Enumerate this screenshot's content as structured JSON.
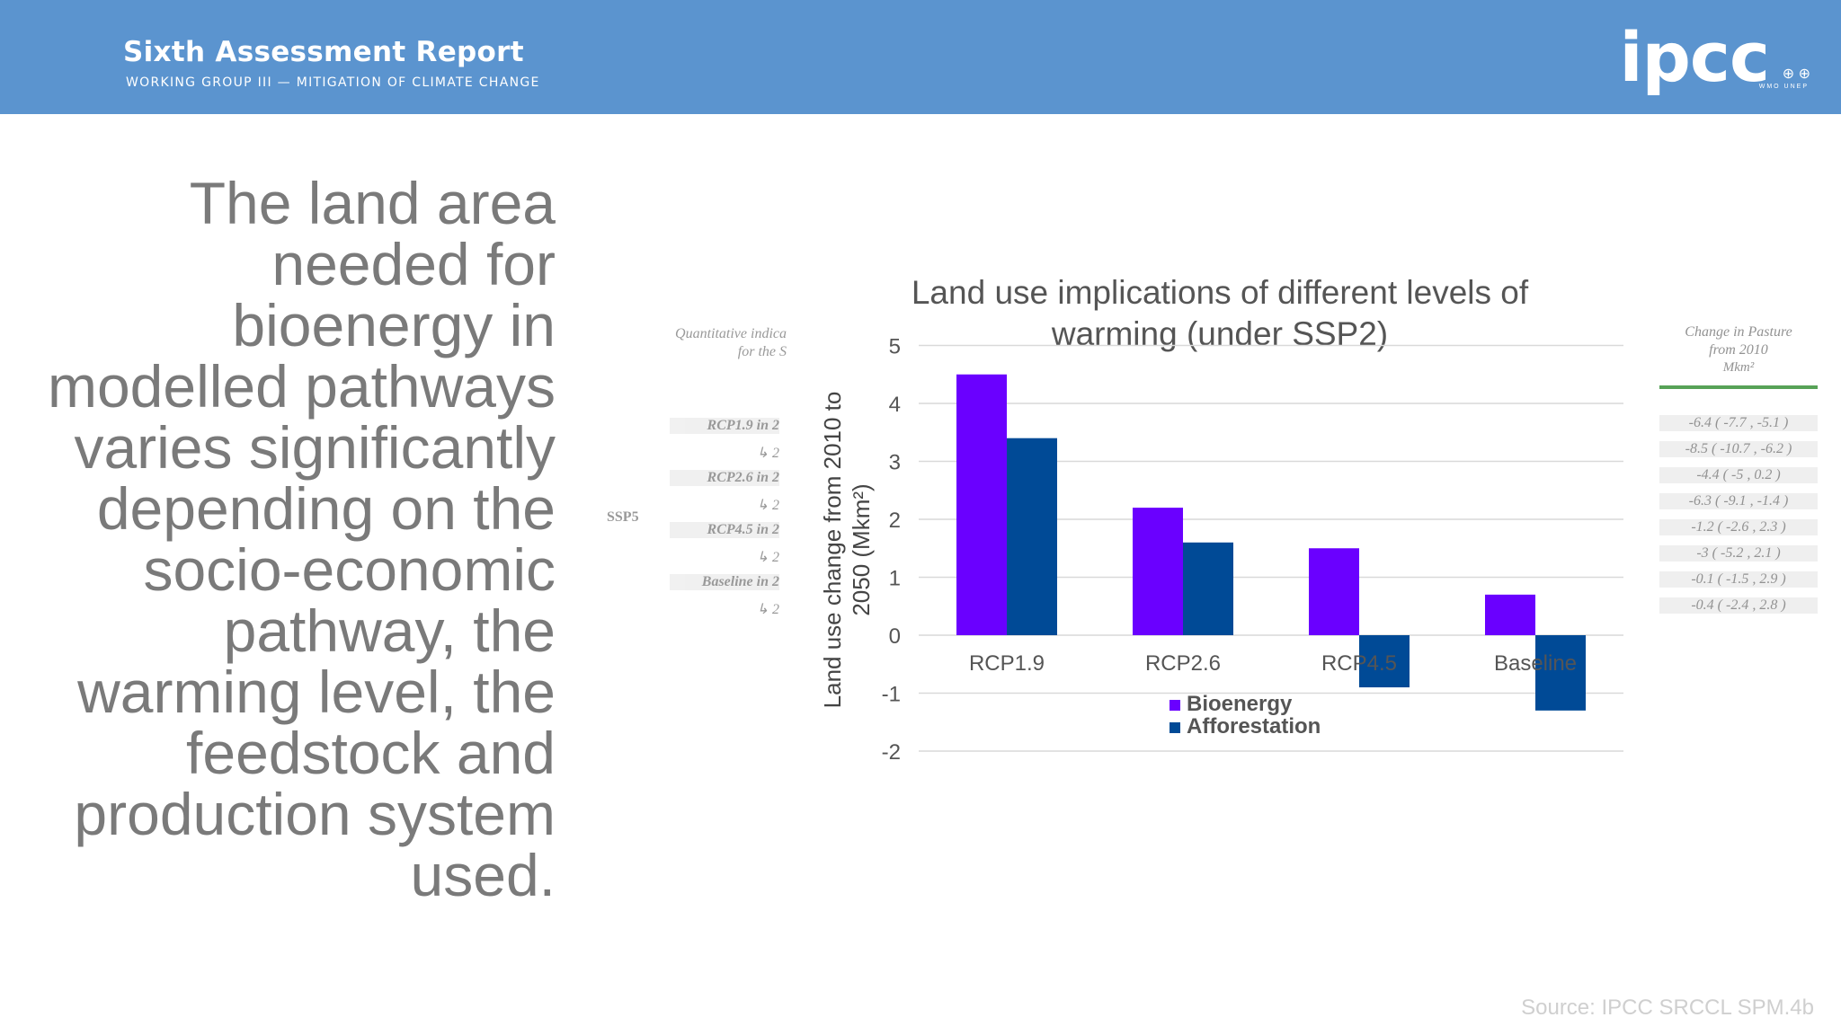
{
  "header": {
    "title": "Sixth Assessment Report",
    "subtitle": "WORKING GROUP III — MITIGATION OF CLIMATE CHANGE",
    "logo_text": "ipcc",
    "logo_caption": "WMO UNEP"
  },
  "headline": "The land area needed for bioenergy in modelled pathways varies significantly depending on the socio-economic pathway, the warming level, the feedstock and production system used.",
  "left_table": {
    "heading_line1": "Quantitative indica",
    "heading_line2": "for the S",
    "group_label": "SSP5",
    "rows": [
      "RCP1.9 in 2",
      "↳ 2",
      "RCP2.6 in 2",
      "↳ 2",
      "RCP4.5 in 2",
      "↳ 2",
      "Baseline in 2",
      "↳ 2"
    ]
  },
  "right_table": {
    "heading_line1": "Change in Pasture",
    "heading_line2": "from 2010",
    "heading_line3": "Mkm²",
    "rows": [
      "-6.4 ( -7.7 , -5.1 )",
      "-8.5 ( -10.7 , -6.2 )",
      "-4.4 ( -5 , 0.2 )",
      "-6.3 ( -9.1 , -1.4 )",
      "-1.2 ( -2.6 , 2.3 )",
      "-3 ( -5.2 , 2.1 )",
      "-0.1 ( -1.5 , 2.9 )",
      "-0.4 ( -2.4 , 2.8 )"
    ]
  },
  "chart_data": {
    "type": "bar",
    "title_line1": "Land use implications of different levels of",
    "title_line2": "warming (under SSP2)",
    "ylabel_line1": "Land use change from 2010 to",
    "ylabel_line2": "2050 (Mkm²)",
    "categories": [
      "RCP1.9",
      "RCP2.6",
      "RCP4.5",
      "Baseline"
    ],
    "series": [
      {
        "name": "Bioenergy",
        "values": [
          4.5,
          2.2,
          1.5,
          0.7
        ],
        "color": "#6a00ff"
      },
      {
        "name": "Afforestation",
        "values": [
          3.4,
          1.6,
          -0.9,
          -1.3
        ],
        "color": "#004a96"
      }
    ],
    "ylim": [
      -2,
      5
    ],
    "yticks": [
      "5",
      "4",
      "3",
      "2",
      "1",
      "0",
      "-1",
      "-2"
    ],
    "grid": true,
    "legend_position": "bottom-center"
  },
  "source": "Source: IPCC SRCCL SPM.4b",
  "colors": {
    "banner": "#5b94cf",
    "text_gray": "#7a7a7a"
  }
}
